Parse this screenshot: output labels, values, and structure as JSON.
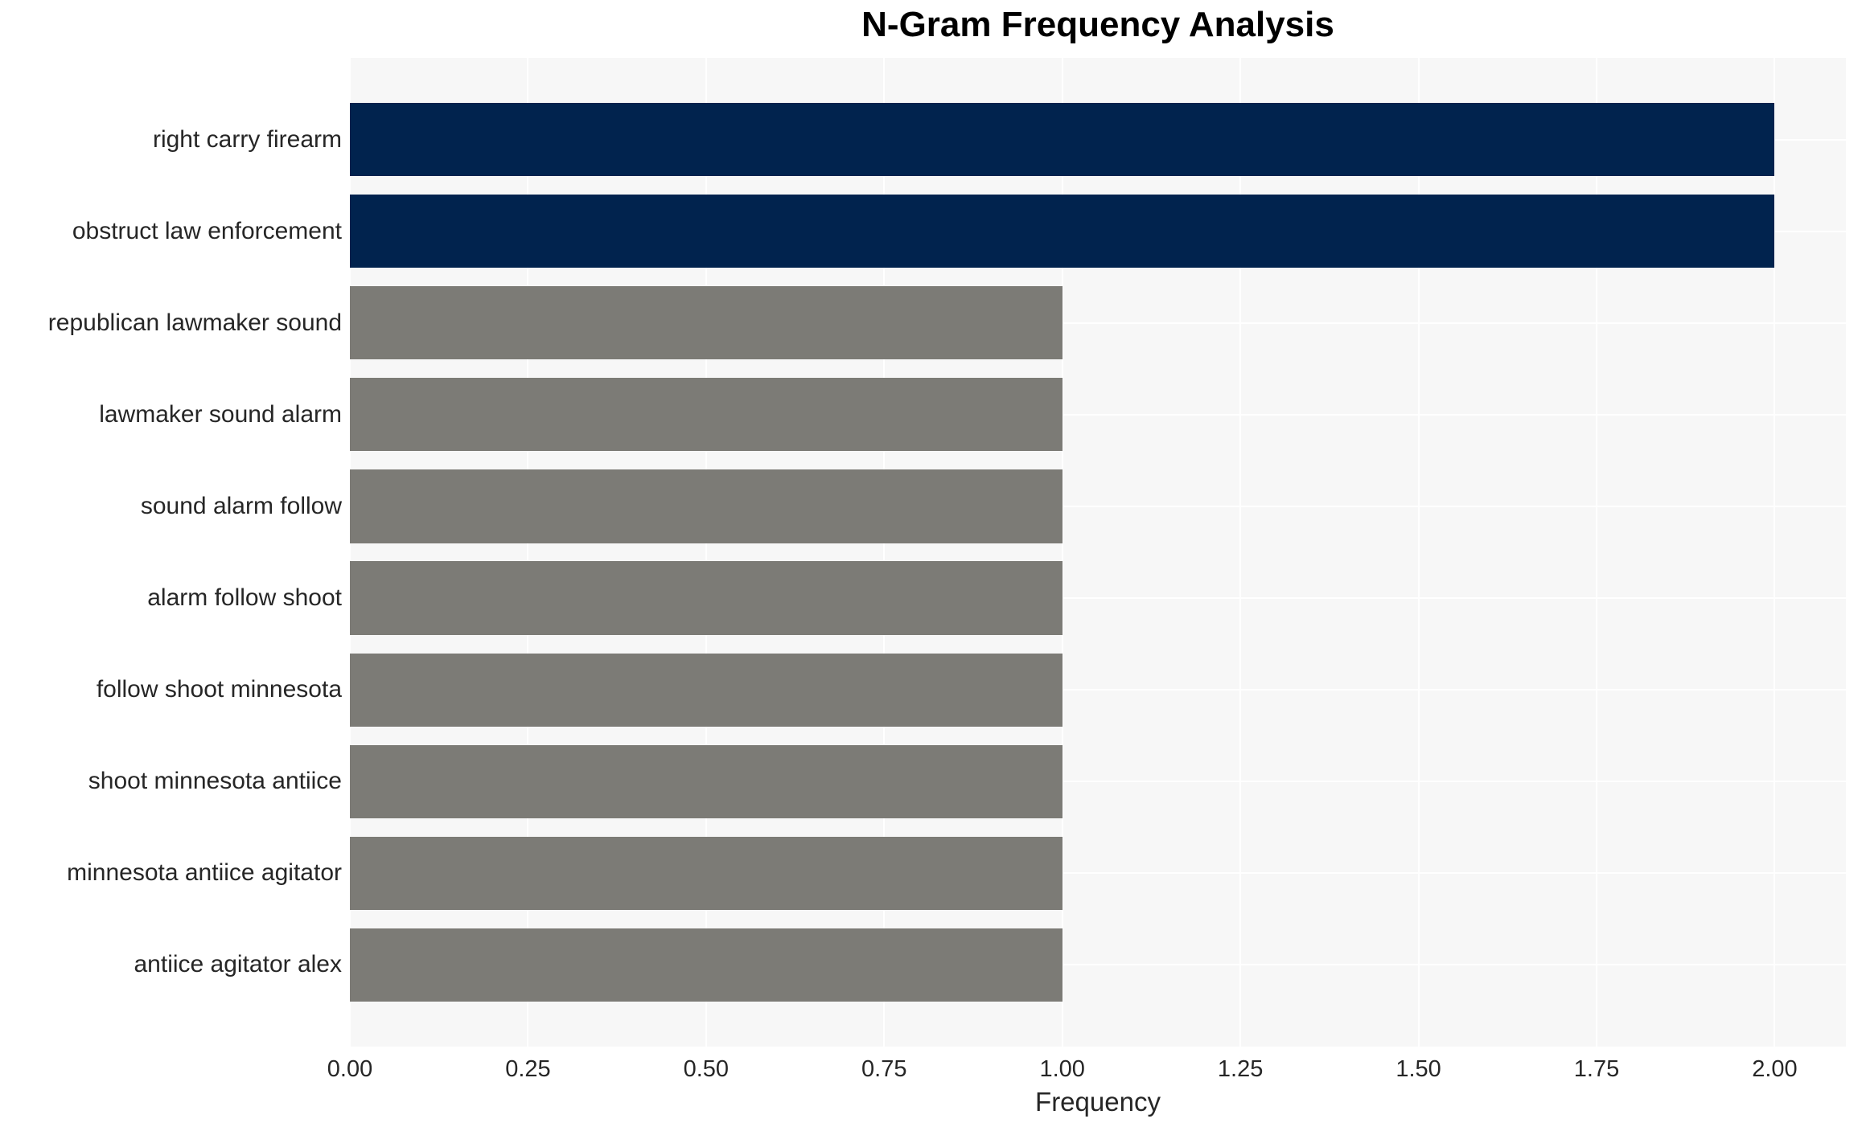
{
  "chart_data": {
    "type": "bar",
    "orientation": "horizontal",
    "title": "N-Gram Frequency Analysis",
    "xlabel": "Frequency",
    "ylabel": "",
    "categories": [
      "right carry firearm",
      "obstruct law enforcement",
      "republican lawmaker sound",
      "lawmaker sound alarm",
      "sound alarm follow",
      "alarm follow shoot",
      "follow shoot minnesota",
      "shoot minnesota antiice",
      "minnesota antiice agitator",
      "antiice agitator alex"
    ],
    "values": [
      2,
      2,
      1,
      1,
      1,
      1,
      1,
      1,
      1,
      1
    ],
    "bar_colors": [
      "#01234e",
      "#01234e",
      "#7c7b76",
      "#7c7b76",
      "#7c7b76",
      "#7c7b76",
      "#7c7b76",
      "#7c7b76",
      "#7c7b76",
      "#7c7b76"
    ],
    "xlim": [
      0,
      2.1
    ],
    "xticks": [
      0,
      0.25,
      0.5,
      0.75,
      1,
      1.25,
      1.5,
      1.75,
      2
    ],
    "xtick_labels": [
      "0.00",
      "0.25",
      "0.50",
      "0.75",
      "1.00",
      "1.25",
      "1.50",
      "1.75",
      "2.00"
    ],
    "grid": true,
    "legend_position": "none",
    "colors": {
      "highlight_bar": "#01234e",
      "normal_bar": "#7c7b76",
      "plot_background": "#f7f7f7",
      "grid_color": "#ffffff",
      "text_color": "#262626",
      "title_color": "#000000",
      "figure_background": "#ffffff"
    }
  }
}
